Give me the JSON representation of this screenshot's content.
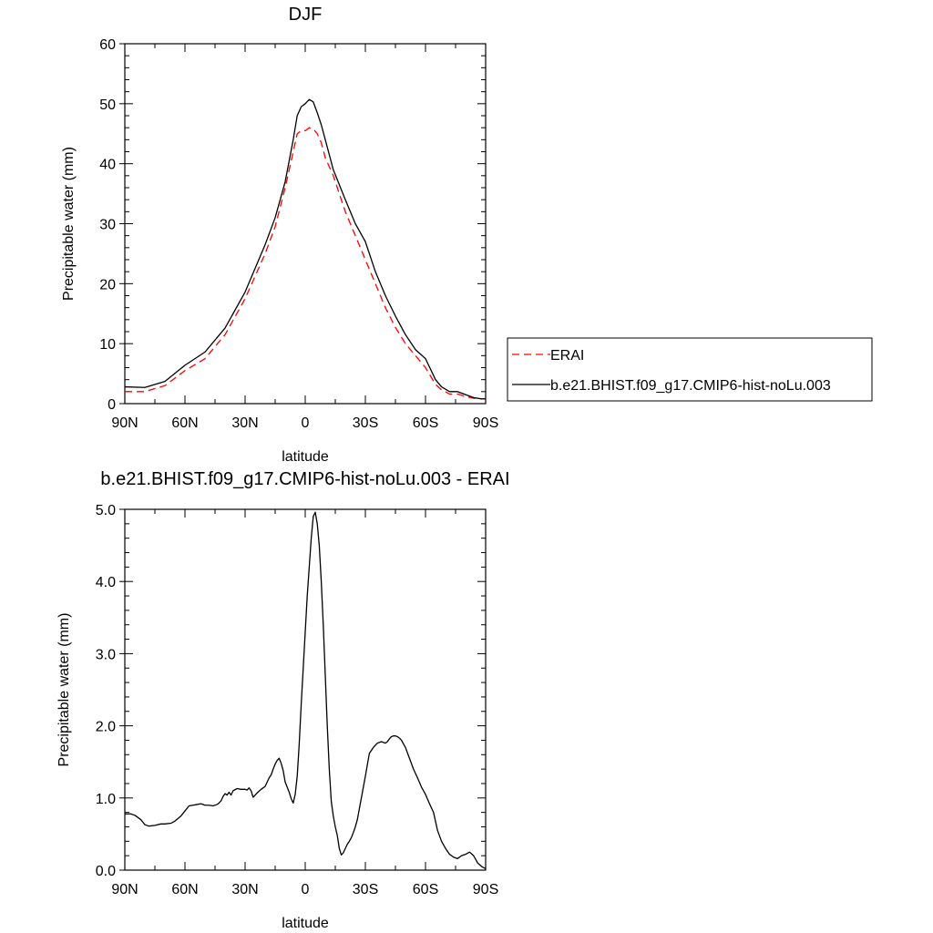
{
  "chart_data": [
    {
      "type": "line",
      "title": "DJF",
      "xlabel": "latitude",
      "ylabel": "Precipitable water (mm)",
      "xlim": [
        -90,
        90
      ],
      "ylim": [
        0,
        60
      ],
      "x_ticks": [
        -90,
        -60,
        -30,
        0,
        30,
        60,
        90
      ],
      "x_tick_labels": [
        "90N",
        "60N",
        "30N",
        "0",
        "30S",
        "60S",
        "90S"
      ],
      "y_ticks": [
        0,
        10,
        20,
        30,
        40,
        50,
        60
      ],
      "y_tick_labels": [
        "0",
        "10",
        "20",
        "30",
        "40",
        "50",
        "60"
      ],
      "grid": false,
      "legend": "right",
      "series": [
        {
          "name": "ERAI",
          "color": "#ff0000",
          "style": "dashed",
          "x": [
            -90,
            -80,
            -70,
            -60,
            -50,
            -40,
            -30,
            -20,
            -15,
            -10,
            -6,
            -4,
            -2,
            0,
            2,
            4,
            6,
            8,
            10,
            14,
            20,
            25,
            30,
            35,
            40,
            45,
            50,
            55,
            60,
            65,
            68,
            72,
            76,
            80,
            84,
            88,
            90
          ],
          "values": [
            2.0,
            2.0,
            3.0,
            5.5,
            7.5,
            11.5,
            17.5,
            25.0,
            29.5,
            36.0,
            42.0,
            45.0,
            45.5,
            45.5,
            46.0,
            45.8,
            45.0,
            43.5,
            41.0,
            38.0,
            32.0,
            28.0,
            24.0,
            20.0,
            16.0,
            12.7,
            10.0,
            8.0,
            6.0,
            3.2,
            2.3,
            1.6,
            1.6,
            1.2,
            0.9,
            0.8,
            0.8
          ]
        },
        {
          "name": "b.e21.BHIST.f09_g17.CMIP6-hist-noLu.003",
          "color": "#000000",
          "style": "solid",
          "x": [
            -90,
            -80,
            -70,
            -60,
            -50,
            -40,
            -30,
            -20,
            -15,
            -10,
            -6,
            -4,
            -2,
            0,
            2,
            4,
            6,
            8,
            10,
            14,
            20,
            25,
            30,
            35,
            40,
            45,
            50,
            55,
            60,
            65,
            68,
            72,
            76,
            80,
            84,
            88,
            90
          ],
          "values": [
            2.8,
            2.7,
            3.7,
            6.4,
            8.6,
            12.6,
            18.6,
            26.5,
            31.0,
            37.0,
            44.0,
            48.0,
            49.5,
            50.0,
            50.7,
            50.3,
            48.5,
            46.5,
            44.0,
            39.0,
            34.0,
            30.0,
            27.0,
            22.0,
            18.0,
            14.6,
            11.5,
            9.0,
            7.5,
            4.0,
            2.8,
            2.0,
            2.0,
            1.5,
            1.0,
            0.8,
            0.8
          ]
        }
      ]
    },
    {
      "type": "line",
      "title": "b.e21.BHIST.f09_g17.CMIP6-hist-noLu.003 - ERAI",
      "xlabel": "latitude",
      "ylabel": "Precipitable water (mm)",
      "xlim": [
        -90,
        90
      ],
      "ylim": [
        0,
        5
      ],
      "x_ticks": [
        -90,
        -60,
        -30,
        0,
        30,
        60,
        90
      ],
      "x_tick_labels": [
        "90N",
        "60N",
        "30N",
        "0",
        "30S",
        "60S",
        "90S"
      ],
      "y_ticks": [
        0,
        1,
        2,
        3,
        4,
        5
      ],
      "y_tick_labels": [
        "0.0",
        "1.0",
        "2.0",
        "3.0",
        "4.0",
        "5.0"
      ],
      "grid": false,
      "series": [
        {
          "color": "#000000",
          "style": "solid",
          "x": [
            -90,
            -87,
            -85,
            -82,
            -80,
            -78,
            -75,
            -72,
            -70,
            -67,
            -65,
            -62,
            -60,
            -58,
            -56,
            -54,
            -52,
            -50,
            -48,
            -46,
            -44,
            -43,
            -42,
            -41,
            -40,
            -39,
            -38,
            -37,
            -36,
            -34,
            -32,
            -30,
            -29,
            -28,
            -27,
            -26,
            -24,
            -22,
            -20,
            -18,
            -17,
            -16,
            -15,
            -14,
            -13,
            -12,
            -11,
            -10,
            -9,
            -8,
            -7,
            -6,
            -5,
            -4,
            -3,
            -2,
            -1,
            0,
            1,
            2,
            3,
            4,
            5,
            6,
            7,
            8,
            9,
            10,
            11,
            12,
            13,
            14,
            15,
            16,
            17,
            18,
            19,
            20,
            21,
            22,
            23,
            24,
            25,
            26,
            27,
            28,
            30,
            32,
            34,
            36,
            38,
            40,
            41,
            42,
            43,
            44,
            45,
            46,
            47,
            48,
            50,
            52,
            54,
            56,
            58,
            60,
            62,
            64,
            66,
            68,
            70,
            72,
            74,
            76,
            78,
            80,
            82,
            84,
            86,
            88,
            90
          ],
          "values": [
            0.78,
            0.78,
            0.76,
            0.7,
            0.63,
            0.61,
            0.62,
            0.64,
            0.64,
            0.65,
            0.68,
            0.75,
            0.82,
            0.89,
            0.9,
            0.91,
            0.92,
            0.9,
            0.9,
            0.89,
            0.91,
            0.93,
            0.96,
            1.02,
            1.06,
            1.04,
            1.08,
            1.04,
            1.1,
            1.13,
            1.12,
            1.12,
            1.11,
            1.14,
            1.1,
            1.01,
            1.07,
            1.12,
            1.16,
            1.28,
            1.32,
            1.4,
            1.47,
            1.52,
            1.55,
            1.48,
            1.38,
            1.22,
            1.15,
            1.08,
            0.99,
            0.93,
            1.05,
            1.3,
            1.75,
            2.3,
            2.8,
            3.3,
            3.8,
            4.2,
            4.6,
            4.9,
            4.96,
            4.8,
            4.5,
            4.0,
            3.4,
            2.7,
            2.0,
            1.4,
            0.95,
            0.75,
            0.6,
            0.48,
            0.3,
            0.21,
            0.24,
            0.3,
            0.36,
            0.4,
            0.45,
            0.52,
            0.6,
            0.7,
            0.85,
            1.0,
            1.3,
            1.62,
            1.7,
            1.76,
            1.78,
            1.76,
            1.78,
            1.82,
            1.85,
            1.86,
            1.86,
            1.85,
            1.83,
            1.8,
            1.7,
            1.55,
            1.4,
            1.28,
            1.15,
            1.05,
            0.92,
            0.8,
            0.55,
            0.4,
            0.3,
            0.22,
            0.18,
            0.16,
            0.2,
            0.22,
            0.25,
            0.2,
            0.1,
            0.05,
            0.02
          ]
        }
      ]
    }
  ]
}
